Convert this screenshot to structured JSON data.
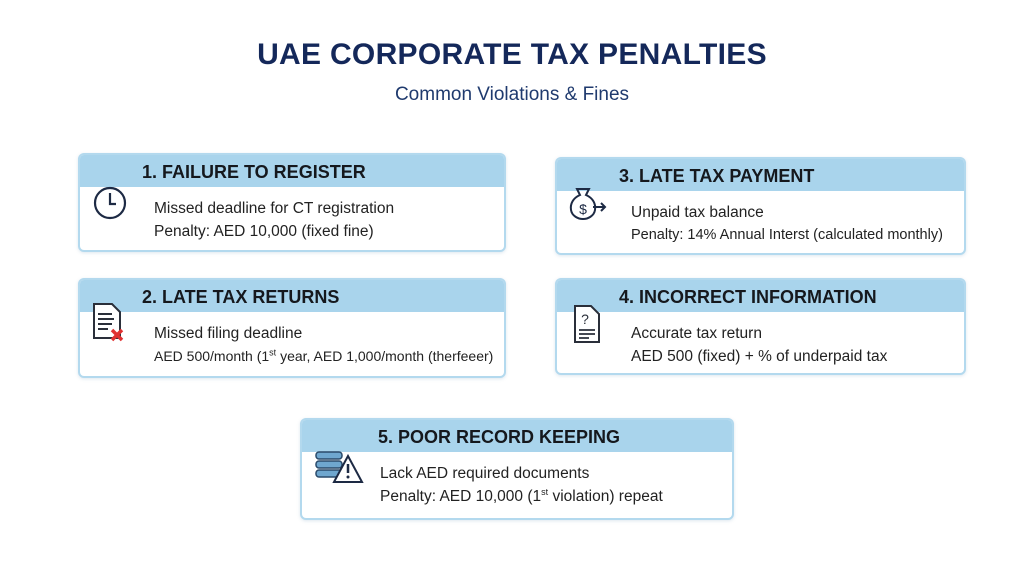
{
  "title": "UAE CORPORATE TAX PENALTIES",
  "subtitle": "Common Violations & Fines",
  "colors": {
    "title": "#14285a",
    "header_bg": "#a9d4ec",
    "border": "#b3d9ee",
    "error_red": "#e03030"
  },
  "cards": [
    {
      "heading": "1. FAILURE TO REGISTER",
      "icon": "clock-icon",
      "line1": "Missed deadline for CT registration",
      "line2": "Penalty: AED 10,000 (fixed fine)"
    },
    {
      "heading": "2. LATE TAX RETURNS",
      "icon": "document-x-icon",
      "line1": "Missed filing deadline",
      "line2_pre": "AED 500/month (1",
      "line2_sup": "st",
      "line2_post": " year, AED 1,000/month (therfeeer)"
    },
    {
      "heading": "3. LATE TAX PAYMENT",
      "icon": "money-bag-icon",
      "line1": "Unpaid tax balance",
      "line2": "Penalty: 14% Annual Interst (calculated monthly)"
    },
    {
      "heading": "4. INCORRECT INFORMATION",
      "icon": "document-question-icon",
      "line1": "Accurate tax return",
      "line2": "AED 500 (fixed) + % of underpaid tax"
    },
    {
      "heading": "5. POOR RECORD KEEPING",
      "icon": "records-warning-icon",
      "line1": "Lack AED required documents",
      "line2_pre": "Penalty: AED 10,000 (1",
      "line2_sup": "st",
      "line2_post": " violation) repeat"
    }
  ]
}
